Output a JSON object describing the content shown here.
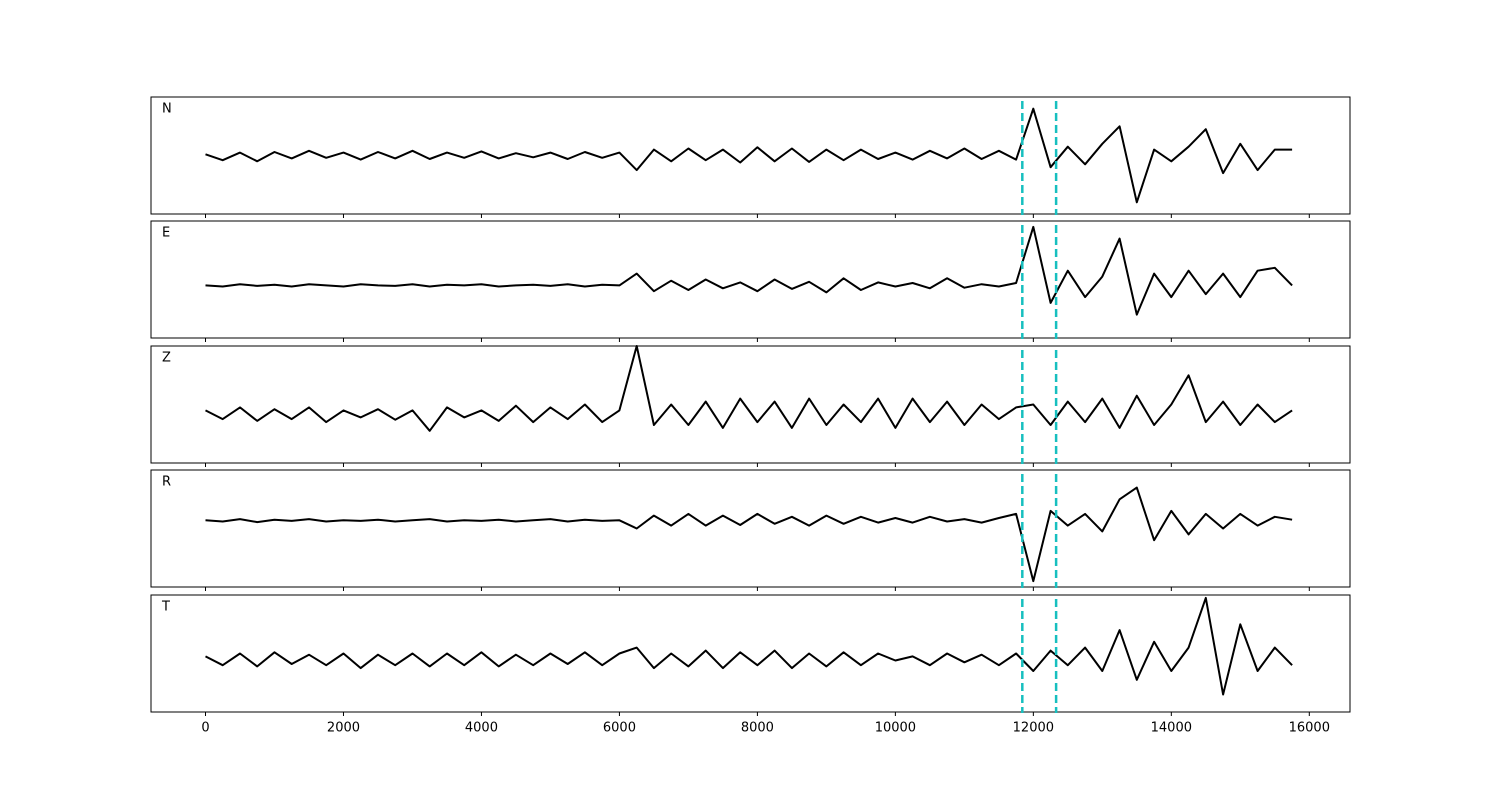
{
  "chart_data": {
    "type": "line",
    "x": [
      0,
      250,
      500,
      750,
      1000,
      1250,
      1500,
      1750,
      2000,
      2250,
      2500,
      2750,
      3000,
      3250,
      3500,
      3750,
      4000,
      4250,
      4500,
      4750,
      5000,
      5250,
      5500,
      5750,
      6000,
      6250,
      6500,
      6750,
      7000,
      7250,
      7500,
      7750,
      8000,
      8250,
      8500,
      8750,
      9000,
      9250,
      9500,
      9750,
      10000,
      10250,
      10500,
      10750,
      11000,
      11250,
      11500,
      11750,
      12000,
      12250,
      12500,
      12750,
      13000,
      13250,
      13500,
      13750,
      14000,
      14250,
      14500,
      14750,
      15000,
      15250,
      15500,
      15750
    ],
    "xlim": [
      -790,
      16590
    ],
    "xticks": [
      0,
      2000,
      4000,
      6000,
      8000,
      10000,
      12000,
      14000,
      16000
    ],
    "ylim": [
      -1,
      1
    ],
    "vlines": [
      11840,
      12330
    ],
    "vline_color": "#17bfbf",
    "series": [
      {
        "name": "N",
        "color": "#000000",
        "values": [
          0.02,
          -0.08,
          0.05,
          -0.1,
          0.06,
          -0.05,
          0.08,
          -0.04,
          0.05,
          -0.07,
          0.06,
          -0.05,
          0.08,
          -0.06,
          0.05,
          -0.04,
          0.07,
          -0.05,
          0.04,
          -0.03,
          0.05,
          -0.06,
          0.06,
          -0.04,
          0.05,
          -0.25,
          0.1,
          -0.1,
          0.12,
          -0.08,
          0.1,
          -0.12,
          0.14,
          -0.1,
          0.12,
          -0.11,
          0.1,
          -0.08,
          0.1,
          -0.06,
          0.05,
          -0.07,
          0.08,
          -0.05,
          0.12,
          -0.06,
          0.08,
          -0.07,
          0.8,
          -0.2,
          0.15,
          -0.15,
          0.2,
          0.5,
          -0.8,
          0.1,
          -0.1,
          0.15,
          0.45,
          -0.3,
          0.2,
          -0.25,
          0.1,
          0.1
        ]
      },
      {
        "name": "E",
        "color": "#000000",
        "values": [
          -0.1,
          -0.12,
          -0.08,
          -0.11,
          -0.09,
          -0.12,
          -0.08,
          -0.1,
          -0.12,
          -0.08,
          -0.1,
          -0.11,
          -0.08,
          -0.12,
          -0.09,
          -0.1,
          -0.08,
          -0.12,
          -0.1,
          -0.09,
          -0.11,
          -0.08,
          -0.12,
          -0.09,
          -0.1,
          0.1,
          -0.2,
          -0.02,
          -0.18,
          0.0,
          -0.15,
          -0.05,
          -0.2,
          0.0,
          -0.16,
          -0.04,
          -0.22,
          0.02,
          -0.18,
          -0.05,
          -0.12,
          -0.06,
          -0.15,
          0.02,
          -0.14,
          -0.08,
          -0.12,
          -0.06,
          0.9,
          -0.4,
          0.15,
          -0.3,
          0.05,
          0.7,
          -0.6,
          0.1,
          -0.3,
          0.15,
          -0.25,
          0.1,
          -0.3,
          0.15,
          0.2,
          -0.1
        ]
      },
      {
        "name": "Z",
        "color": "#000000",
        "values": [
          -0.1,
          -0.25,
          -0.05,
          -0.28,
          -0.08,
          -0.25,
          -0.05,
          -0.3,
          -0.1,
          -0.22,
          -0.08,
          -0.26,
          -0.1,
          -0.45,
          -0.05,
          -0.22,
          -0.1,
          -0.28,
          -0.02,
          -0.3,
          -0.05,
          -0.25,
          0.0,
          -0.3,
          -0.1,
          1.0,
          -0.35,
          0.0,
          -0.35,
          0.05,
          -0.4,
          0.1,
          -0.3,
          0.05,
          -0.4,
          0.1,
          -0.35,
          0.0,
          -0.3,
          0.1,
          -0.4,
          0.1,
          -0.3,
          0.05,
          -0.35,
          0.0,
          -0.25,
          -0.05,
          0.0,
          -0.35,
          0.05,
          -0.3,
          0.1,
          -0.4,
          0.15,
          -0.35,
          0.0,
          0.5,
          -0.3,
          0.05,
          -0.35,
          0.0,
          -0.3,
          -0.1
        ]
      },
      {
        "name": "R",
        "color": "#000000",
        "values": [
          0.14,
          0.12,
          0.16,
          0.11,
          0.15,
          0.13,
          0.16,
          0.12,
          0.14,
          0.13,
          0.15,
          0.12,
          0.14,
          0.16,
          0.12,
          0.14,
          0.13,
          0.15,
          0.12,
          0.14,
          0.16,
          0.12,
          0.15,
          0.13,
          0.14,
          0.0,
          0.22,
          0.05,
          0.25,
          0.05,
          0.22,
          0.06,
          0.25,
          0.08,
          0.2,
          0.05,
          0.22,
          0.08,
          0.2,
          0.1,
          0.18,
          0.1,
          0.2,
          0.12,
          0.16,
          0.1,
          0.18,
          0.25,
          -0.9,
          0.3,
          0.05,
          0.25,
          -0.05,
          0.5,
          0.7,
          -0.2,
          0.3,
          -0.1,
          0.25,
          0.0,
          0.25,
          0.05,
          0.2,
          0.15
        ]
      },
      {
        "name": "T",
        "color": "#000000",
        "values": [
          -0.05,
          -0.2,
          0.0,
          -0.22,
          0.02,
          -0.18,
          -0.02,
          -0.2,
          0.0,
          -0.25,
          -0.02,
          -0.2,
          0.0,
          -0.22,
          0.0,
          -0.2,
          0.02,
          -0.22,
          -0.02,
          -0.2,
          0.0,
          -0.18,
          0.02,
          -0.2,
          0.0,
          0.1,
          -0.25,
          0.0,
          -0.22,
          0.05,
          -0.25,
          0.02,
          -0.2,
          0.05,
          -0.25,
          0.0,
          -0.22,
          0.02,
          -0.2,
          0.0,
          -0.12,
          -0.05,
          -0.2,
          0.0,
          -0.15,
          -0.02,
          -0.2,
          0.0,
          -0.3,
          0.05,
          -0.2,
          0.1,
          -0.3,
          0.4,
          -0.45,
          0.2,
          -0.3,
          0.1,
          0.95,
          -0.7,
          0.5,
          -0.3,
          0.1,
          -0.2
        ]
      }
    ]
  }
}
